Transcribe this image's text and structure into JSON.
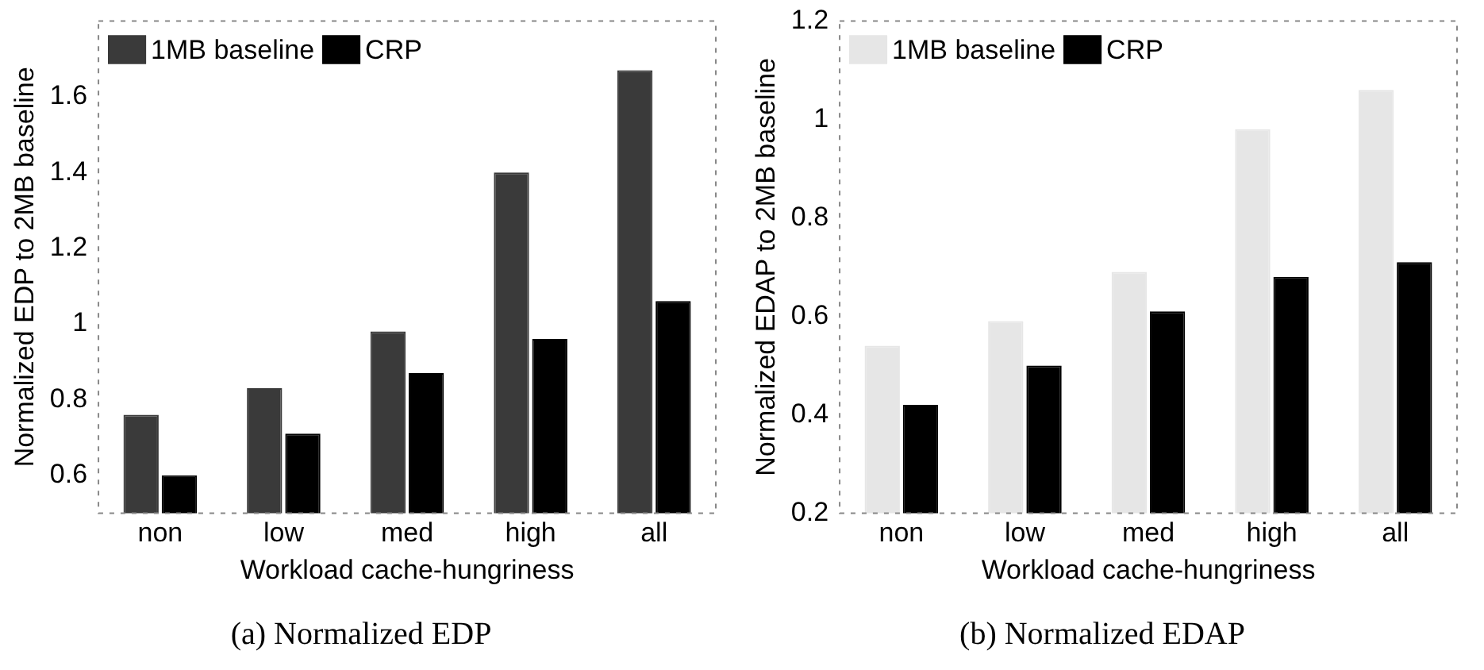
{
  "chart_data": [
    {
      "type": "bar",
      "title": "(a) Normalized EDP",
      "xlabel": "Workload cache-hungriness",
      "ylabel": "Normalized EDP to 2MB baseline",
      "categories": [
        "non",
        "low",
        "med",
        "high",
        "all"
      ],
      "series": [
        {
          "name": "1MB baseline",
          "color": "#3a3a3a",
          "values": [
            0.76,
            0.83,
            0.98,
            1.4,
            1.67
          ]
        },
        {
          "name": "CRP",
          "color": "#000000",
          "values": [
            0.6,
            0.71,
            0.87,
            0.96,
            1.06
          ]
        }
      ],
      "ylim": [
        0.5,
        1.8
      ],
      "yticks": [
        0.6,
        0.8,
        {
          "value": 1,
          "label": "1"
        },
        1.2,
        1.4,
        1.6
      ],
      "grid": false,
      "legend": "top left"
    },
    {
      "type": "bar",
      "title": "(b) Normalized EDAP",
      "xlabel": "Workload cache-hungriness",
      "ylabel": "Normalized EDAP to 2MB baseline",
      "categories": [
        "non",
        "low",
        "med",
        "high",
        "all"
      ],
      "series": [
        {
          "name": "1MB baseline",
          "color": "#e6e6e6",
          "values": [
            0.54,
            0.59,
            0.69,
            0.98,
            1.06
          ]
        },
        {
          "name": "CRP",
          "color": "#000000",
          "values": [
            0.42,
            0.5,
            0.61,
            0.68,
            0.71
          ]
        }
      ],
      "ylim": [
        0.2,
        1.2
      ],
      "yticks": [
        0.2,
        0.4,
        0.6,
        0.8,
        {
          "value": 1,
          "label": "1"
        },
        1.2
      ],
      "grid": false,
      "legend": "top left"
    }
  ]
}
